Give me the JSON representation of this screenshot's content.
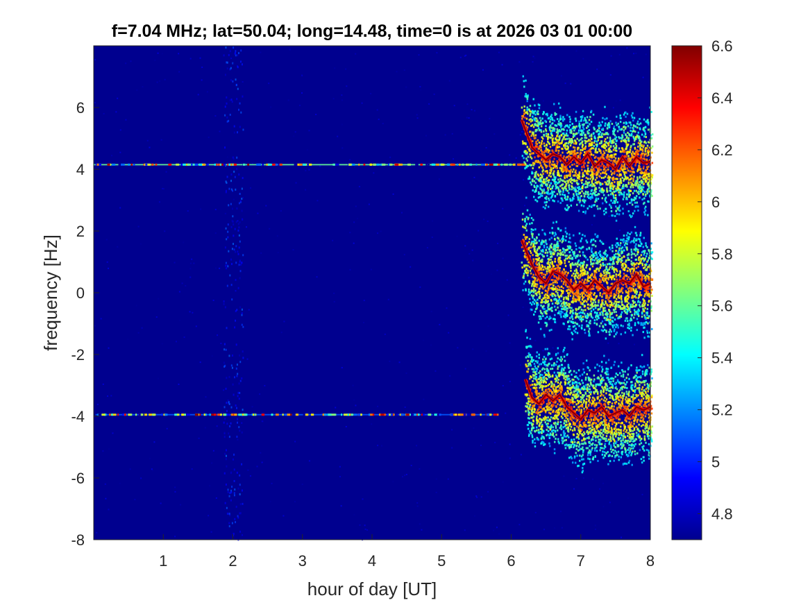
{
  "chart_data": {
    "type": "heatmap",
    "title": "f=7.04 MHz;  lat=50.04; long=14.48, time=0 is at 2026 03 01 00:00",
    "xlabel": "hour of day [UT]",
    "ylabel": "frequency [Hz]",
    "xlim": [
      0,
      8
    ],
    "ylim": [
      -8,
      8
    ],
    "x_ticks": [
      1,
      2,
      3,
      4,
      5,
      6,
      7,
      8
    ],
    "y_ticks": [
      -8,
      -6,
      -4,
      -2,
      0,
      2,
      4,
      6
    ],
    "colorbar": {
      "colormap": "jet",
      "limits": [
        4.7,
        6.6
      ],
      "ticks": [
        4.8,
        5,
        5.2,
        5.4,
        5.6,
        5.8,
        6,
        6.2,
        6.4,
        6.6
      ]
    },
    "background_value": 4.75,
    "features": [
      {
        "kind": "horizontal_line",
        "y": 4.15,
        "x_range": [
          0,
          6.2
        ],
        "value": 5.6
      },
      {
        "kind": "horizontal_line",
        "y": -3.95,
        "x_range": [
          0,
          5.8
        ],
        "value": 5.1
      },
      {
        "kind": "vertical_noise_band",
        "x": 2.0,
        "y_range": [
          -8,
          8
        ],
        "value": 5.0
      },
      {
        "kind": "doppler_trace",
        "x_range": [
          6.15,
          8.0
        ],
        "x": [
          6.15,
          6.3,
          6.4,
          6.5,
          6.6,
          6.7,
          6.8,
          6.9,
          7.0,
          7.1,
          7.2,
          7.3,
          7.4,
          7.5,
          7.6,
          7.7,
          7.8,
          7.9,
          8.0
        ],
        "y": [
          5.6,
          4.7,
          4.5,
          4.3,
          4.5,
          4.4,
          4.15,
          4.4,
          4.2,
          4.5,
          4.1,
          4.3,
          4.2,
          4.0,
          4.4,
          4.1,
          4.4,
          4.2,
          4.25
        ],
        "value": 6.6
      },
      {
        "kind": "doppler_trace",
        "x_range": [
          6.15,
          8.0
        ],
        "x": [
          6.15,
          6.3,
          6.4,
          6.5,
          6.6,
          6.7,
          6.8,
          6.9,
          7.0,
          7.1,
          7.2,
          7.3,
          7.4,
          7.5,
          7.6,
          7.7,
          7.8,
          7.9,
          8.0
        ],
        "y": [
          1.7,
          0.9,
          0.5,
          0.3,
          0.7,
          0.6,
          0.4,
          0.1,
          0.3,
          0.1,
          0.4,
          0.2,
          0.0,
          0.3,
          0.4,
          0.3,
          0.6,
          0.2,
          0.3
        ],
        "value": 6.6
      },
      {
        "kind": "doppler_trace",
        "x_range": [
          6.2,
          8.0
        ],
        "x": [
          6.2,
          6.3,
          6.4,
          6.5,
          6.6,
          6.7,
          6.8,
          6.9,
          7.0,
          7.1,
          7.2,
          7.3,
          7.4,
          7.5,
          7.6,
          7.7,
          7.8,
          7.9,
          8.0
        ],
        "y": [
          -2.8,
          -3.4,
          -3.6,
          -3.3,
          -3.5,
          -3.3,
          -3.7,
          -3.9,
          -4.1,
          -3.8,
          -3.9,
          -3.7,
          -4.0,
          -3.9,
          -3.8,
          -4.0,
          -3.7,
          -3.8,
          -3.7
        ],
        "value": 6.6
      }
    ]
  }
}
